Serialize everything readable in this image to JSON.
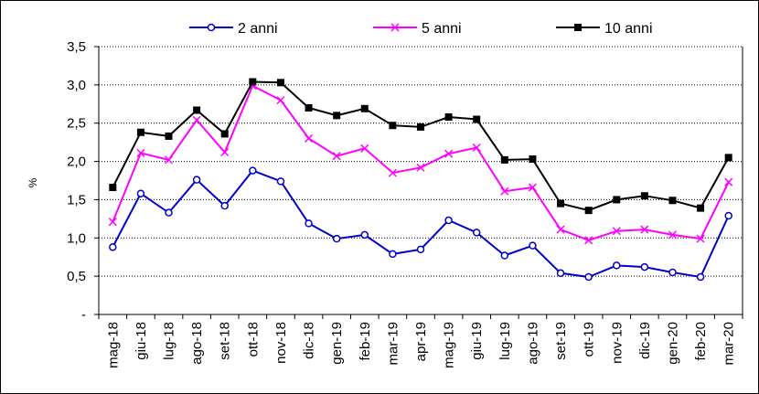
{
  "chart_data": {
    "type": "line",
    "title": "",
    "xlabel": "",
    "ylabel": "%",
    "ylim": [
      0,
      3.5
    ],
    "yticks": [
      "-",
      "0,5",
      "1,0",
      "1,5",
      "2,0",
      "2,5",
      "3,0",
      "3,5"
    ],
    "grid": true,
    "legend_position": "top",
    "categories": [
      "mag-18",
      "giu-18",
      "lug-18",
      "ago-18",
      "set-18",
      "ott-18",
      "nov-18",
      "dic-18",
      "gen-19",
      "feb-19",
      "mar-19",
      "apr-19",
      "mag-19",
      "giu-19",
      "lug-19",
      "ago-19",
      "set-19",
      "ott-19",
      "nov-19",
      "dic-19",
      "gen-20",
      "feb-20",
      "mar-20"
    ],
    "series": [
      {
        "name": "2 anni",
        "color": "#0000cc",
        "marker": "circle-open",
        "values": [
          0.88,
          1.58,
          1.33,
          1.76,
          1.42,
          1.88,
          1.74,
          1.19,
          0.99,
          1.04,
          0.79,
          0.85,
          1.23,
          1.07,
          0.77,
          0.9,
          0.54,
          0.49,
          0.64,
          0.62,
          0.55,
          0.49,
          1.29
        ]
      },
      {
        "name": "5 anni",
        "color": "#ff00ff",
        "marker": "x",
        "values": [
          1.21,
          2.11,
          2.02,
          2.54,
          2.12,
          2.99,
          2.8,
          2.3,
          2.07,
          2.17,
          1.85,
          1.92,
          2.1,
          2.18,
          1.61,
          1.66,
          1.11,
          0.97,
          1.09,
          1.11,
          1.04,
          0.99,
          1.73
        ]
      },
      {
        "name": "10 anni",
        "color": "#000000",
        "marker": "square-filled",
        "values": [
          1.66,
          2.38,
          2.33,
          2.67,
          2.36,
          3.04,
          3.03,
          2.7,
          2.6,
          2.69,
          2.47,
          2.45,
          2.58,
          2.55,
          2.02,
          2.03,
          1.45,
          1.36,
          1.5,
          1.55,
          1.49,
          1.39,
          2.05
        ]
      }
    ]
  }
}
